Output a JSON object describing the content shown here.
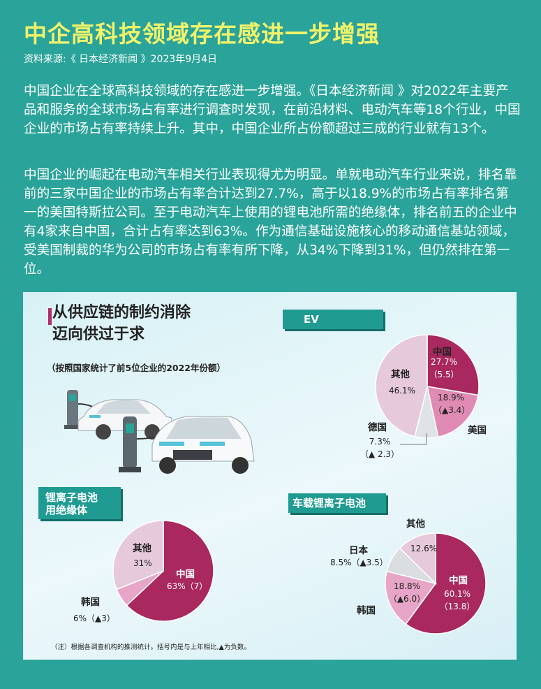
{
  "header": {
    "title": "中企高科技领域存在感进一步增强",
    "source": "资料来源:《 日本经济新闻 》2023年9月4日"
  },
  "body": {
    "p1": "中国企业在全球高科技领域的存在感进一步增强。《日本经济新闻 》对2022年主要产品和服务的全球市场占有率进行调查时发现，在前沿材料、电动汽车等18个行业，中国企业的市场占有率持续上升。其中，中国企业所占份额超过三成的行业就有13个。",
    "p2": "中国企业的崛起在电动汽车相关行业表现得尤为明显。单就电动汽车行业来说，排名靠前的三家中国企业的市场占有率合计达到27.7%，高于以18.9%的市场占有率排名第一的美国特斯拉公司。至于电动汽车上使用的锂电池所需的绝缘体，排名前五的企业中有4家来自中国，合计占有率达到63%。作为通信基础设施核心的移动通信基站领域，受美国制裁的华为公司的市场占有率有所下降，从34%下降到31%，但仍然排在第一位。"
  },
  "panel": {
    "title_line1": "从供应链的制约消除",
    "title_line2": "迈向供过于求",
    "subtitle": "（按照国家统计了前5位企业的2022年份额）",
    "note": "（注）根据各调查机构的推测统计。括号内是与上年相比,▲为负数。"
  },
  "colors": {
    "china": "#a8285f",
    "usa": "#e08bb3",
    "germany": "#dfe3e6",
    "korea": "#e7a5c7",
    "japan": "#d9dde0",
    "other": "#e6c9da"
  },
  "chart_data": [
    {
      "type": "pie",
      "title": "EV",
      "series": [
        {
          "name": "中国",
          "value": 27.7,
          "label": "27.7%",
          "change": "（5.5）"
        },
        {
          "name": "美国",
          "value": 18.9,
          "label": "18.9%",
          "change": "（▲3.4）"
        },
        {
          "name": "德国",
          "value": 7.3,
          "label": "7.3%",
          "change": "（▲ 2.3）"
        },
        {
          "name": "其他",
          "value": 46.1,
          "label": "46.1%",
          "change": ""
        }
      ]
    },
    {
      "type": "pie",
      "title_line1": "锂离子电池",
      "title_line2": "用绝缘体",
      "series": [
        {
          "name": "中国",
          "value": 63,
          "label": "63%（7）",
          "change": ""
        },
        {
          "name": "韩国",
          "value": 6,
          "label": "6%（▲3）",
          "change": ""
        },
        {
          "name": "其他",
          "value": 31,
          "label": "31%",
          "change": ""
        }
      ]
    },
    {
      "type": "pie",
      "title": "车载锂离子电池",
      "series": [
        {
          "name": "中国",
          "value": 60.1,
          "label": "60.1%",
          "change": "（13.8）"
        },
        {
          "name": "韩国",
          "value": 18.8,
          "label": "18.8%",
          "change": "（▲6.0）"
        },
        {
          "name": "日本",
          "value": 8.5,
          "label": "8.5%（▲3.5）",
          "change": ""
        },
        {
          "name": "其他",
          "value": 12.6,
          "label": "12.6%",
          "change": ""
        }
      ]
    }
  ]
}
